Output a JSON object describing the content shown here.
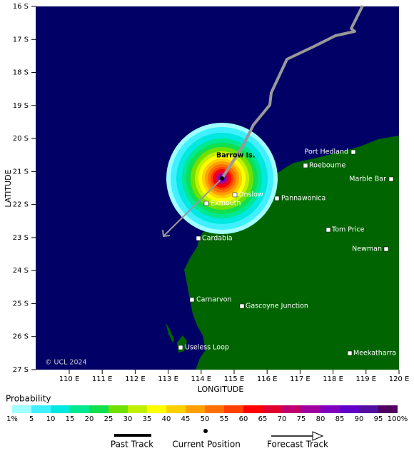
{
  "axes": {
    "y_label": "LATITUDE",
    "x_label": "LONGITUDE",
    "lat_labels": [
      "16 S",
      "17 S",
      "18 S",
      "19 S",
      "20 S",
      "21 S",
      "22 S",
      "23 S",
      "24 S",
      "25 S",
      "26 S",
      "27 S"
    ],
    "lon_labels": [
      "110 E",
      "111 E",
      "112 E",
      "113 E",
      "114 E",
      "115 E",
      "116 E",
      "117 E",
      "118 E",
      "119 E",
      "120 E"
    ]
  },
  "places": [
    "Barrow Is.",
    "Port Hedland",
    "Roebourne",
    "Marble Bar",
    "Onslow",
    "Pannawonica",
    "Exmouth",
    "Tom Price",
    "Newman",
    "Cardabia",
    "Carnarvon",
    "Gascoyne Junction",
    "Useless Loop",
    "Meekatharra"
  ],
  "copyright": "© UCL 2024",
  "colorbar": {
    "title": "Probability",
    "labels": [
      "1%",
      "5",
      "10",
      "15",
      "20",
      "25",
      "30",
      "35",
      "40",
      "45",
      "50",
      "55",
      "60",
      "65",
      "70",
      "75",
      "80",
      "85",
      "90",
      "95",
      "100%"
    ],
    "colors": [
      "#a0ffff",
      "#40f0ff",
      "#00e8e0",
      "#00e890",
      "#10e050",
      "#70e000",
      "#c0f000",
      "#ffff00",
      "#ffd000",
      "#ffa000",
      "#ff7000",
      "#ff4000",
      "#ff0000",
      "#e00030",
      "#c00070",
      "#a000a0",
      "#8000c0",
      "#6000c8",
      "#5010a0",
      "#500060"
    ]
  },
  "legend": {
    "past": "Past Track",
    "current": "Current Position",
    "forecast": "Forecast Track"
  }
}
